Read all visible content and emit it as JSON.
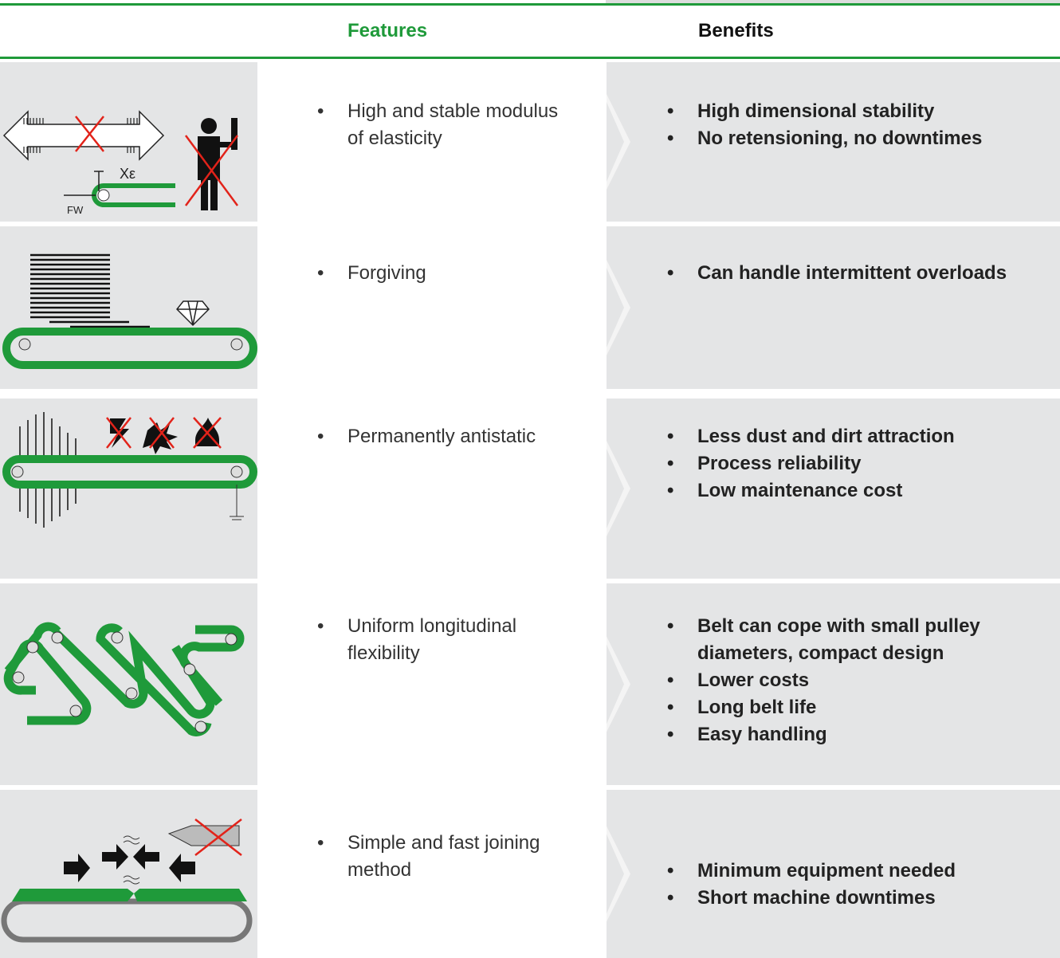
{
  "header": {
    "features": "Features",
    "benefits": "Benefits"
  },
  "rows": [
    {
      "features": [
        "High and stable modulus of elasticity"
      ],
      "benefits": [
        "High dimensional stability",
        "No retensioning, no downtimes"
      ],
      "icon_labels": [
        "Xε",
        "FW"
      ]
    },
    {
      "features": [
        "Forgiving"
      ],
      "benefits": [
        "Can handle intermittent overloads"
      ]
    },
    {
      "features": [
        "Permanently antistatic"
      ],
      "benefits": [
        "Less dust and dirt attraction",
        "Process reliability",
        "Low maintenance cost"
      ]
    },
    {
      "features": [
        "Uniform longitudinal flexibility"
      ],
      "benefits": [
        "Belt can cope with small pulley diameters, compact design",
        "Lower costs",
        "Long belt life",
        "Easy handling"
      ]
    },
    {
      "features": [
        "Simple and fast joining method"
      ],
      "benefits": [
        "Minimum equipment needed",
        "Short machine downtimes"
      ]
    }
  ]
}
